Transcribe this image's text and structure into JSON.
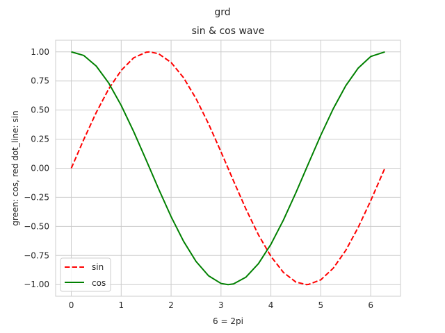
{
  "figure": {
    "suptitle": "grd"
  },
  "chart_data": {
    "type": "line",
    "title": "sin & cos wave",
    "xlabel": "6 = 2pi",
    "ylabel": "green: cos, red dot_line: sin",
    "xlim": [
      -0.314,
      6.597
    ],
    "ylim": [
      -1.1,
      1.1
    ],
    "xticks": [
      0,
      1,
      2,
      3,
      4,
      5,
      6
    ],
    "xtick_labels": [
      "0",
      "1",
      "2",
      "3",
      "4",
      "5",
      "6"
    ],
    "yticks": [
      1.0,
      0.75,
      0.5,
      0.25,
      0.0,
      -0.25,
      -0.5,
      -0.75,
      -1.0
    ],
    "ytick_labels": [
      "1.00",
      "0.75",
      "0.50",
      "0.25",
      "0.00",
      "−0.25",
      "−0.50",
      "−0.75",
      "−1.00"
    ],
    "grid": true,
    "legend_location": "lower-left",
    "series": [
      {
        "name": "sin",
        "color": "#ff0000",
        "style": "dashed",
        "x": [
          0,
          0.25,
          0.5,
          0.75,
          1.0,
          1.25,
          1.5,
          1.5708,
          1.75,
          2.0,
          2.25,
          2.5,
          2.75,
          3.0,
          3.25,
          3.5,
          3.75,
          4.0,
          4.25,
          4.5,
          4.7124,
          4.75,
          5.0,
          5.25,
          5.5,
          5.75,
          6.0,
          6.2832
        ],
        "y": [
          0.0,
          0.247,
          0.479,
          0.682,
          0.841,
          0.949,
          0.997,
          1.0,
          0.984,
          0.909,
          0.778,
          0.598,
          0.382,
          0.141,
          -0.108,
          -0.351,
          -0.572,
          -0.757,
          -0.895,
          -0.978,
          -1.0,
          -0.999,
          -0.959,
          -0.859,
          -0.706,
          -0.508,
          -0.279,
          0.0
        ]
      },
      {
        "name": "cos",
        "color": "#008000",
        "style": "solid",
        "x": [
          0,
          0.25,
          0.5,
          0.75,
          1.0,
          1.25,
          1.5,
          1.75,
          2.0,
          2.25,
          2.5,
          2.75,
          3.0,
          3.1416,
          3.25,
          3.5,
          3.75,
          4.0,
          4.25,
          4.5,
          4.75,
          5.0,
          5.25,
          5.5,
          5.75,
          6.0,
          6.2832
        ],
        "y": [
          1.0,
          0.969,
          0.878,
          0.732,
          0.54,
          0.315,
          0.071,
          -0.178,
          -0.416,
          -0.628,
          -0.801,
          -0.924,
          -0.99,
          -1.0,
          -0.994,
          -0.936,
          -0.82,
          -0.654,
          -0.446,
          -0.211,
          0.038,
          0.284,
          0.512,
          0.709,
          0.861,
          0.96,
          1.0
        ]
      }
    ]
  }
}
